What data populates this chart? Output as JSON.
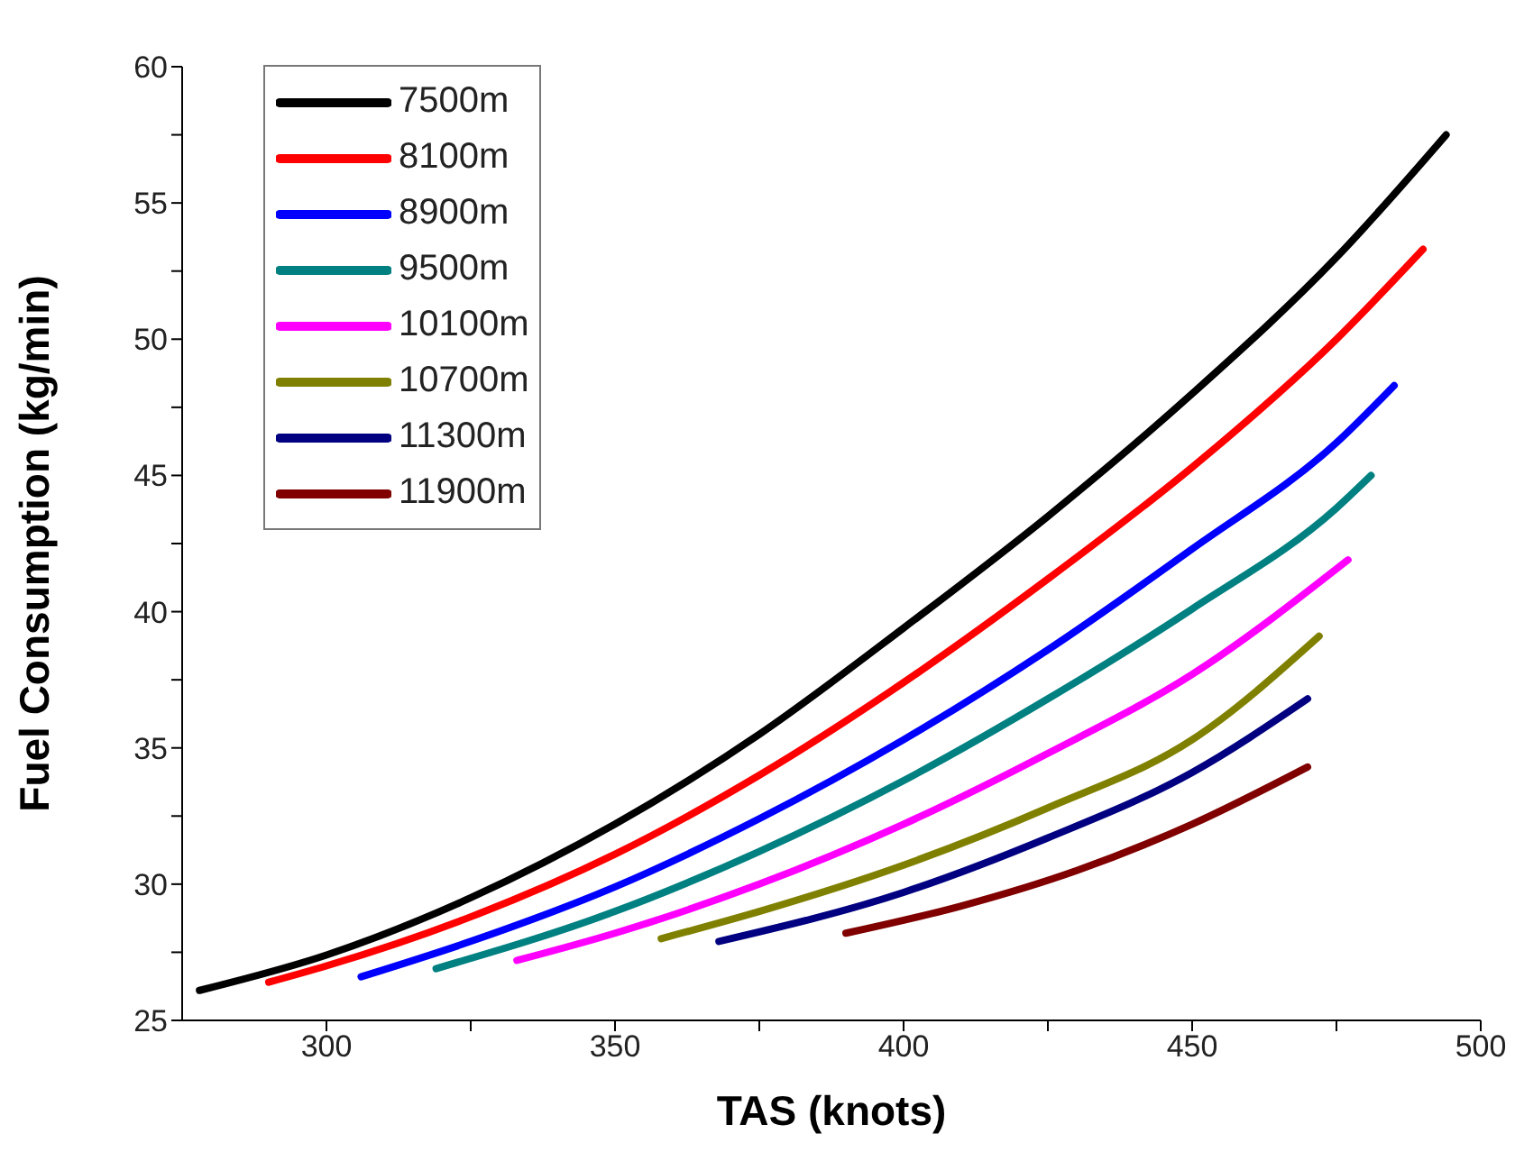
{
  "chart_data": {
    "type": "line",
    "xlabel": "TAS   (knots)",
    "ylabel": "Fuel Consumption   (kg/min)",
    "xlim": [
      275,
      500
    ],
    "xticks": [
      300,
      {
        "value": 325,
        "label": null
      },
      350,
      {
        "value": 375,
        "label": null
      },
      400,
      {
        "value": 425,
        "label": null
      },
      450,
      {
        "value": 475,
        "label": null
      },
      500
    ],
    "ylim": [
      25,
      60
    ],
    "yticks": [
      25,
      {
        "value": 27.5,
        "label": null
      },
      30,
      {
        "value": 32.5,
        "label": null
      },
      35,
      {
        "value": 37.5,
        "label": null
      },
      40,
      {
        "value": 42.5,
        "label": null
      },
      45,
      {
        "value": 47.5,
        "label": null
      },
      50,
      {
        "value": 52.5,
        "label": null
      },
      55,
      {
        "value": 57.5,
        "label": null
      },
      60
    ],
    "grid": false,
    "legend": "top left",
    "marker": "none",
    "line_style": "solid",
    "series": [
      {
        "name": "7500m",
        "color": "#000000",
        "x": [
          278,
          300,
          325,
          350,
          375,
          400,
          425,
          450,
          475,
          494
        ],
        "values": [
          26.1,
          27.4,
          29.5,
          32.2,
          35.5,
          39.4,
          43.5,
          48.0,
          53.0,
          57.5
        ]
      },
      {
        "name": "8100m",
        "color": "#ff0000",
        "x": [
          290,
          300,
          325,
          350,
          375,
          400,
          425,
          450,
          475,
          490
        ],
        "values": [
          26.4,
          27.0,
          28.8,
          31.1,
          34.0,
          37.4,
          41.2,
          45.3,
          50.0,
          53.3
        ]
      },
      {
        "name": "8900m",
        "color": "#0000ff",
        "x": [
          306,
          325,
          350,
          375,
          400,
          425,
          450,
          475,
          485
        ],
        "values": [
          26.6,
          27.9,
          29.9,
          32.4,
          35.3,
          38.6,
          42.3,
          46.2,
          48.3
        ]
      },
      {
        "name": "9500m",
        "color": "#008080",
        "x": [
          319,
          350,
          375,
          400,
          425,
          450,
          475,
          481
        ],
        "values": [
          26.9,
          29.0,
          31.2,
          33.8,
          36.8,
          40.1,
          43.8,
          45.0
        ]
      },
      {
        "name": "10100m",
        "color": "#ff00ff",
        "x": [
          333,
          350,
          375,
          400,
          425,
          450,
          477
        ],
        "values": [
          27.2,
          28.2,
          30.0,
          32.2,
          34.8,
          37.7,
          41.9
        ]
      },
      {
        "name": "10700m",
        "color": "#808000",
        "x": [
          358,
          375,
          400,
          425,
          450,
          472
        ],
        "values": [
          28.0,
          29.0,
          30.7,
          32.8,
          35.3,
          39.1
        ]
      },
      {
        "name": "11300m",
        "color": "#000080",
        "x": [
          368,
          400,
          425,
          450,
          470
        ],
        "values": [
          27.9,
          29.7,
          31.7,
          34.1,
          36.8
        ]
      },
      {
        "name": "11900m",
        "color": "#800000",
        "x": [
          390,
          410,
          430,
          450,
          470
        ],
        "values": [
          28.2,
          29.2,
          30.5,
          32.2,
          34.3
        ]
      }
    ]
  }
}
